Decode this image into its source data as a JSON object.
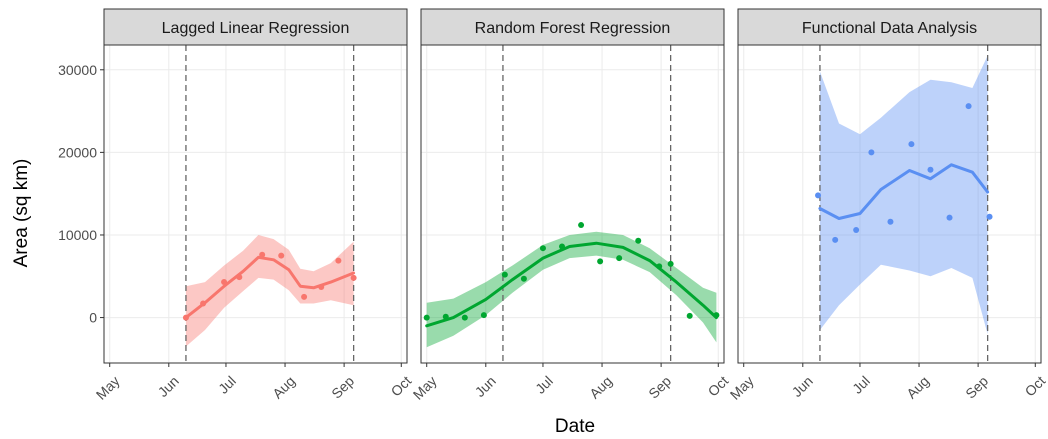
{
  "chart_data": {
    "type": "line",
    "xlabel": "Date",
    "ylabel": "Area (sq km)",
    "ylim": [
      -5500,
      33000
    ],
    "y_ticks": [
      0,
      10000,
      20000,
      30000
    ],
    "y_tick_labels": [
      "0",
      "10000",
      "20000",
      "30000"
    ],
    "x_ticks": [
      "2020-05-01",
      "2020-06-01",
      "2020-07-01",
      "2020-08-01",
      "2020-09-01",
      "2020-10-01"
    ],
    "x_tick_labels": [
      "May",
      "Jun",
      "Jul",
      "Aug",
      "Sep",
      "Oct"
    ],
    "xlim": [
      "2020-04-28",
      "2020-10-04"
    ],
    "grid": true,
    "legend": "none",
    "panels": [
      {
        "title": "Lagged Linear Regression",
        "color": "#F8766D",
        "vlines": [
          "2020-06-10",
          "2020-09-06"
        ],
        "points": [
          {
            "x": "2020-06-10",
            "y": 0
          },
          {
            "x": "2020-06-19",
            "y": 1700
          },
          {
            "x": "2020-06-30",
            "y": 4300
          },
          {
            "x": "2020-07-08",
            "y": 4900
          },
          {
            "x": "2020-07-20",
            "y": 7600
          },
          {
            "x": "2020-07-30",
            "y": 7500
          },
          {
            "x": "2020-08-11",
            "y": 2500
          },
          {
            "x": "2020-08-20",
            "y": 3700
          },
          {
            "x": "2020-08-29",
            "y": 6900
          },
          {
            "x": "2020-09-06",
            "y": 4800
          }
        ],
        "fit": [
          {
            "x": "2020-06-10",
            "y": 0
          },
          {
            "x": "2020-06-20",
            "y": 1800
          },
          {
            "x": "2020-06-30",
            "y": 3800
          },
          {
            "x": "2020-07-10",
            "y": 5600
          },
          {
            "x": "2020-07-18",
            "y": 7300
          },
          {
            "x": "2020-07-26",
            "y": 7000
          },
          {
            "x": "2020-08-03",
            "y": 5800
          },
          {
            "x": "2020-08-09",
            "y": 3800
          },
          {
            "x": "2020-08-16",
            "y": 3600
          },
          {
            "x": "2020-08-25",
            "y": 4300
          },
          {
            "x": "2020-09-06",
            "y": 5400
          }
        ],
        "band_lower": [
          -3500,
          -1500,
          1200,
          3200,
          4800,
          4600,
          3300,
          1700,
          1700,
          2100,
          1500
        ],
        "band_upper": [
          3800,
          4300,
          6300,
          8100,
          10000,
          9500,
          8200,
          5900,
          5600,
          6600,
          9200
        ]
      },
      {
        "title": "Random Forest Regression",
        "color": "#00A630",
        "vlines": [
          "2020-06-10",
          "2020-09-06"
        ],
        "points": [
          {
            "x": "2020-05-01",
            "y": 0
          },
          {
            "x": "2020-05-11",
            "y": 100
          },
          {
            "x": "2020-05-21",
            "y": 0
          },
          {
            "x": "2020-05-31",
            "y": 300
          },
          {
            "x": "2020-06-11",
            "y": 5200
          },
          {
            "x": "2020-06-21",
            "y": 4700
          },
          {
            "x": "2020-07-01",
            "y": 8400
          },
          {
            "x": "2020-07-11",
            "y": 8600
          },
          {
            "x": "2020-07-21",
            "y": 11200
          },
          {
            "x": "2020-07-31",
            "y": 6800
          },
          {
            "x": "2020-08-10",
            "y": 7200
          },
          {
            "x": "2020-08-20",
            "y": 9300
          },
          {
            "x": "2020-08-31",
            "y": 6200
          },
          {
            "x": "2020-09-06",
            "y": 6500
          },
          {
            "x": "2020-09-16",
            "y": 200
          },
          {
            "x": "2020-09-30",
            "y": 300
          }
        ],
        "fit": [
          {
            "x": "2020-05-01",
            "y": -1000
          },
          {
            "x": "2020-05-15",
            "y": 0
          },
          {
            "x": "2020-06-01",
            "y": 2200
          },
          {
            "x": "2020-06-15",
            "y": 4600
          },
          {
            "x": "2020-07-01",
            "y": 7200
          },
          {
            "x": "2020-07-15",
            "y": 8600
          },
          {
            "x": "2020-07-29",
            "y": 9000
          },
          {
            "x": "2020-08-12",
            "y": 8500
          },
          {
            "x": "2020-08-26",
            "y": 6900
          },
          {
            "x": "2020-09-09",
            "y": 4300
          },
          {
            "x": "2020-09-23",
            "y": 1500
          },
          {
            "x": "2020-09-30",
            "y": 0
          }
        ],
        "band_lower": [
          -3600,
          -2200,
          300,
          3000,
          5800,
          7200,
          7500,
          7000,
          5500,
          2700,
          -600,
          -3000
        ],
        "band_upper": [
          1800,
          2300,
          4300,
          6300,
          8800,
          10000,
          10400,
          10000,
          8400,
          6000,
          3600,
          3000
        ]
      },
      {
        "title": "Functional Data Analysis",
        "color": "#5A8FF2",
        "vlines": [
          "2020-06-10",
          "2020-09-06"
        ],
        "points": [
          {
            "x": "2020-06-09",
            "y": 14800
          },
          {
            "x": "2020-06-18",
            "y": 9400
          },
          {
            "x": "2020-06-29",
            "y": 10600
          },
          {
            "x": "2020-07-07",
            "y": 20000
          },
          {
            "x": "2020-07-17",
            "y": 11600
          },
          {
            "x": "2020-07-28",
            "y": 21000
          },
          {
            "x": "2020-08-07",
            "y": 17900
          },
          {
            "x": "2020-08-17",
            "y": 12100
          },
          {
            "x": "2020-08-27",
            "y": 25600
          },
          {
            "x": "2020-09-07",
            "y": 12200
          }
        ],
        "fit": [
          {
            "x": "2020-06-10",
            "y": 13200
          },
          {
            "x": "2020-06-20",
            "y": 12000
          },
          {
            "x": "2020-07-01",
            "y": 12600
          },
          {
            "x": "2020-07-12",
            "y": 15500
          },
          {
            "x": "2020-07-27",
            "y": 17800
          },
          {
            "x": "2020-08-07",
            "y": 16800
          },
          {
            "x": "2020-08-18",
            "y": 18500
          },
          {
            "x": "2020-08-29",
            "y": 17600
          },
          {
            "x": "2020-09-06",
            "y": 15200
          }
        ],
        "band_lower": [
          -1500,
          1500,
          4000,
          6400,
          5700,
          5000,
          6000,
          4800,
          -2000
        ],
        "band_upper": [
          29800,
          23500,
          22200,
          24200,
          27300,
          28800,
          28500,
          27800,
          31700
        ]
      }
    ]
  }
}
